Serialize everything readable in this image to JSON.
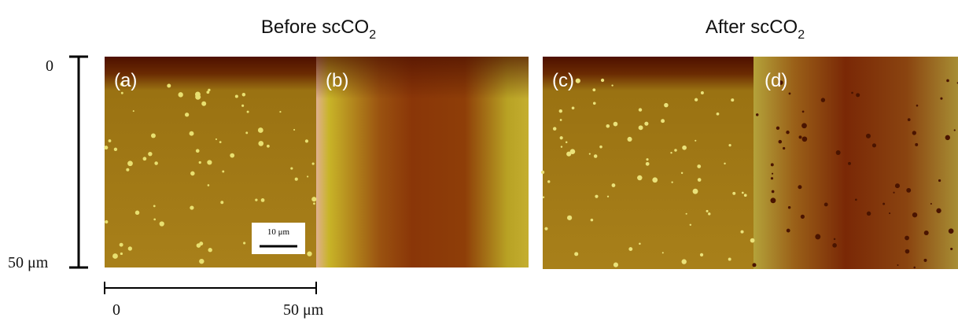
{
  "titles": [
    {
      "text": "Before scCO",
      "sub": "2"
    },
    {
      "text": "After scCO",
      "sub": "2"
    }
  ],
  "panels": [
    "(a)",
    "(b)",
    "(c)",
    "(d)"
  ],
  "vertical_axis": {
    "top": "0",
    "bottom": "50 μm"
  },
  "horizontal_axis": {
    "left": "0",
    "right": "50 μm"
  },
  "scale_bar": "10 μm"
}
